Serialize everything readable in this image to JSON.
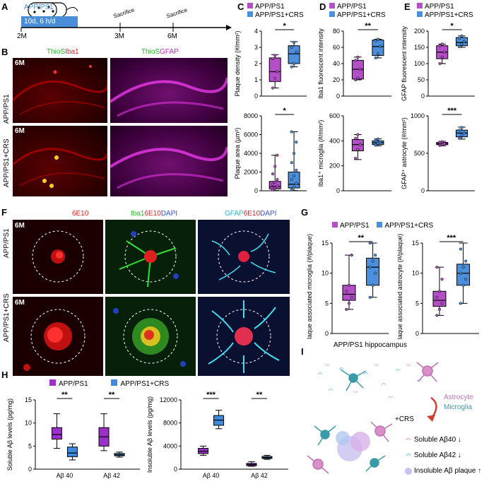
{
  "panels": {
    "A": {
      "letter": "A",
      "mouse_label": "APP/PS1",
      "bar_text": "10d, 6 h/d",
      "ticks": [
        "2M",
        "3M",
        "6M"
      ],
      "events": [
        "Sacrifice",
        "Sacrifice"
      ]
    },
    "B": {
      "letter": "B",
      "channels_left": [
        "ThioS",
        "Iba1"
      ],
      "channels_right": [
        "ThioS",
        "GFAP"
      ],
      "rows": [
        "APP/PS1",
        "APP/PS1+CRS"
      ],
      "age": "6M"
    },
    "C": {
      "letter": "C"
    },
    "D": {
      "letter": "D"
    },
    "E": {
      "letter": "E"
    },
    "F": {
      "letter": "F",
      "col1": "6E10",
      "col2": [
        "Iba1",
        "6E10",
        "DAPI"
      ],
      "col3": [
        "GFAP",
        "6E10",
        "DAPI"
      ],
      "rows": [
        "APP/PS1",
        "APP/PS1+CRS"
      ],
      "age": "6M"
    },
    "G": {
      "letter": "G"
    },
    "H": {
      "letter": "H"
    },
    "I": {
      "letter": "I",
      "title": "APP/PS1 hippocampus",
      "astrocyte": "Astrocyte",
      "microglia": "Microglia",
      "treatment": "+CRS",
      "items": [
        "Soluble Aβ40",
        "Soluble Aβ42",
        "Insoluble Aβ plaque"
      ],
      "arrows": [
        "↓",
        "↓",
        "↑"
      ]
    }
  },
  "legend": {
    "group1": "APP/PS1",
    "group2": "APP/PS1+CRS"
  },
  "colors": {
    "group1": "#b44fc7",
    "group2": "#4c8fdc",
    "ctrl": "#9b30c8",
    "crs": "#3d8be0"
  },
  "chart_data": [
    {
      "id": "C-top",
      "type": "box",
      "ylabel": "Plaque density (#/mm²)",
      "ylim": [
        0,
        4
      ],
      "yticks": [
        0,
        1,
        2,
        3,
        4
      ],
      "sig": "*",
      "series": [
        {
          "name": "APP/PS1",
          "min": 0.5,
          "q1": 0.9,
          "median": 1.5,
          "q3": 2.35,
          "max": 2.55,
          "points": [
            0.5,
            1.1,
            1.5,
            2.3,
            2.5
          ]
        },
        {
          "name": "APP/PS1+CRS",
          "min": 1.8,
          "q1": 2.0,
          "median": 2.6,
          "q3": 3.1,
          "max": 3.35,
          "points": [
            1.8,
            2.0,
            2.7,
            3.0,
            3.3
          ]
        }
      ]
    },
    {
      "id": "C-bottom",
      "type": "box",
      "ylabel": "Plaque area (µm²)",
      "ylim": [
        0,
        8000
      ],
      "yticks": [
        0,
        2000,
        4000,
        6000,
        8000
      ],
      "sig": "*",
      "series": [
        {
          "name": "APP/PS1",
          "min": 30,
          "q1": 200,
          "median": 450,
          "q3": 1000,
          "max": 3800,
          "points": [
            100,
            300,
            500,
            700,
            900,
            1200,
            1800,
            2600,
            3800
          ]
        },
        {
          "name": "APP/PS1+CRS",
          "min": 30,
          "q1": 300,
          "median": 700,
          "q3": 2000,
          "max": 6300,
          "points": [
            100,
            400,
            800,
            1200,
            1600,
            2200,
            3000,
            4000,
            5200,
            6300
          ]
        }
      ]
    },
    {
      "id": "D-top",
      "type": "box",
      "ylabel": "Iba1 fluorescent intensity",
      "ylim": [
        0,
        80
      ],
      "yticks": [
        0,
        20,
        40,
        60,
        80
      ],
      "sig": "**",
      "series": [
        {
          "name": "APP/PS1",
          "min": 20,
          "q1": 21,
          "median": 33,
          "q3": 44,
          "max": 48,
          "points": [
            20,
            22,
            33,
            44,
            48
          ]
        },
        {
          "name": "APP/PS1+CRS",
          "min": 47,
          "q1": 50,
          "median": 61,
          "q3": 69,
          "max": 70,
          "points": [
            47,
            52,
            61,
            68,
            70
          ]
        }
      ]
    },
    {
      "id": "D-bottom",
      "type": "box",
      "ylabel": "Iba1⁺ microglia (#/mm²)",
      "ylim": [
        0,
        600
      ],
      "yticks": [
        0,
        200,
        400,
        600
      ],
      "sig": "",
      "series": [
        {
          "name": "APP/PS1",
          "min": 250,
          "q1": 320,
          "median": 370,
          "q3": 410,
          "max": 450,
          "points": [
            260,
            330,
            370,
            420,
            450
          ]
        },
        {
          "name": "APP/PS1+CRS",
          "min": 360,
          "q1": 370,
          "median": 385,
          "q3": 400,
          "max": 415,
          "points": [
            365,
            380,
            390,
            405,
            415
          ]
        }
      ]
    },
    {
      "id": "E-top",
      "type": "box",
      "ylabel": "GFAP fluorescent intensity",
      "ylim": [
        0,
        200
      ],
      "yticks": [
        0,
        50,
        100,
        150,
        200
      ],
      "sig": "*",
      "series": [
        {
          "name": "APP/PS1",
          "min": 100,
          "q1": 115,
          "median": 135,
          "q3": 155,
          "max": 160,
          "points": [
            100,
            120,
            135,
            155,
            160
          ]
        },
        {
          "name": "APP/PS1+CRS",
          "min": 150,
          "q1": 155,
          "median": 165,
          "q3": 180,
          "max": 185,
          "points": [
            152,
            160,
            168,
            178,
            185
          ]
        }
      ]
    },
    {
      "id": "E-bottom",
      "type": "box",
      "ylabel": "GFAP⁺ astrocyte (#/mm²)",
      "ylim": [
        0,
        1000
      ],
      "yticks": [
        0,
        500,
        1000
      ],
      "sig": "***",
      "series": [
        {
          "name": "APP/PS1",
          "min": 600,
          "q1": 615,
          "median": 630,
          "q3": 645,
          "max": 660,
          "points": [
            605,
            620,
            630,
            645,
            655
          ]
        },
        {
          "name": "APP/PS1+CRS",
          "min": 690,
          "q1": 720,
          "median": 770,
          "q3": 810,
          "max": 850,
          "points": [
            700,
            740,
            770,
            810,
            845
          ]
        }
      ]
    },
    {
      "id": "G-left",
      "type": "box",
      "ylabel": "plaque associated microglia (#/plaque)",
      "ylim": [
        0,
        15
      ],
      "yticks": [
        0,
        5,
        10,
        15
      ],
      "sig": "**",
      "series": [
        {
          "name": "APP/PS1",
          "min": 4,
          "q1": 5.5,
          "median": 6.5,
          "q3": 8,
          "max": 13,
          "points": [
            4,
            5,
            6,
            7,
            8,
            13
          ]
        },
        {
          "name": "APP/PS1+CRS",
          "min": 6,
          "q1": 8,
          "median": 11,
          "q3": 12.5,
          "max": 15,
          "points": [
            6,
            8,
            10,
            11,
            12,
            13,
            15
          ]
        }
      ]
    },
    {
      "id": "G-right",
      "type": "box",
      "ylabel": "plaque associated astrocyte (#/plaque)",
      "ylim": [
        0,
        15
      ],
      "yticks": [
        0,
        5,
        10,
        15
      ],
      "sig": "***",
      "series": [
        {
          "name": "APP/PS1",
          "min": 3,
          "q1": 4.5,
          "median": 5.5,
          "q3": 7,
          "max": 11,
          "points": [
            3,
            4,
            5,
            6,
            7,
            9,
            11
          ]
        },
        {
          "name": "APP/PS1+CRS",
          "min": 5,
          "q1": 8,
          "median": 10,
          "q3": 11.5,
          "max": 15,
          "points": [
            5,
            8,
            9,
            10,
            11,
            12,
            14
          ]
        }
      ]
    },
    {
      "id": "H-left",
      "type": "box",
      "ylabel": "Soluble Aβ levels (pg/mg)",
      "ylim": [
        0,
        15
      ],
      "yticks": [
        0,
        5,
        10,
        15
      ],
      "categories": [
        "Aβ 40",
        "Aβ 42"
      ],
      "sigs": [
        "**",
        "**"
      ],
      "groups": [
        [
          {
            "name": "APP/PS1",
            "min": 4.5,
            "q1": 6.5,
            "median": 7.5,
            "q3": 9,
            "max": 12
          },
          {
            "name": "APP/PS1+CRS",
            "min": 2,
            "q1": 2.7,
            "median": 3.5,
            "q3": 4.8,
            "max": 5.5
          }
        ],
        [
          {
            "name": "APP/PS1",
            "min": 4,
            "q1": 5,
            "median": 7,
            "q3": 9,
            "max": 12
          },
          {
            "name": "APP/PS1+CRS",
            "min": 2.6,
            "q1": 2.9,
            "median": 3.1,
            "q3": 3.4,
            "max": 3.7
          }
        ]
      ]
    },
    {
      "id": "H-right",
      "type": "box",
      "ylabel": "Insoluble Aβ levels (pg/mg)",
      "ylim": [
        0,
        12000
      ],
      "yticks": [
        0,
        4000,
        8000,
        12000
      ],
      "categories": [
        "Aβ 40",
        "Aβ 42"
      ],
      "sigs": [
        "***",
        "**"
      ],
      "groups": [
        [
          {
            "name": "APP/PS1",
            "min": 2400,
            "q1": 2700,
            "median": 3100,
            "q3": 3600,
            "max": 4000
          },
          {
            "name": "APP/PS1+CRS",
            "min": 7000,
            "q1": 7600,
            "median": 8500,
            "q3": 9300,
            "max": 10200
          }
        ],
        [
          {
            "name": "APP/PS1",
            "min": 500,
            "q1": 600,
            "median": 800,
            "q3": 1000,
            "max": 1300
          },
          {
            "name": "APP/PS1+CRS",
            "min": 1700,
            "q1": 1850,
            "median": 2000,
            "q3": 2200,
            "max": 2400
          }
        ]
      ]
    }
  ]
}
